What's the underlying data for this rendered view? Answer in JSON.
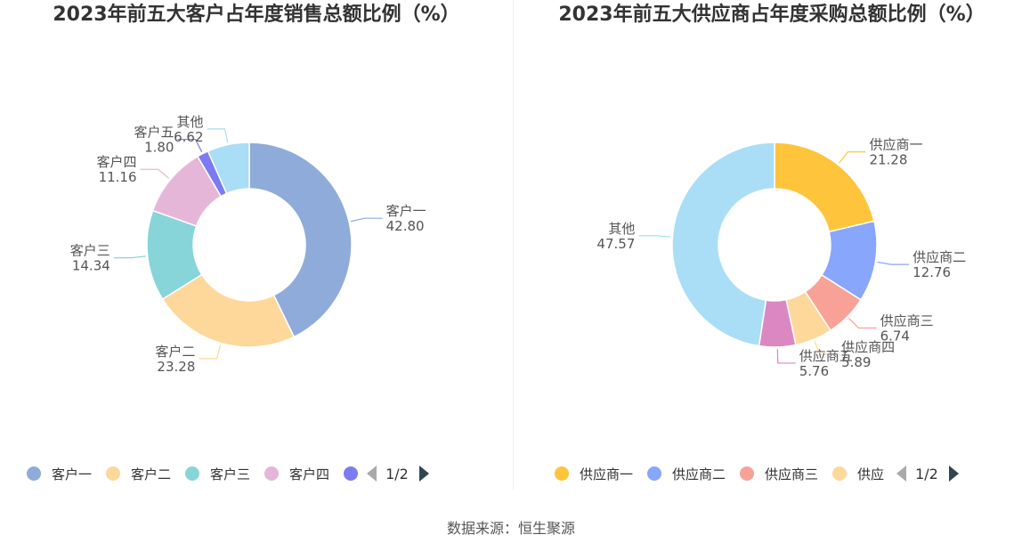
{
  "chart_data": [
    {
      "type": "pie",
      "title": "2023年前五大客户占年度销售总额比例（%）",
      "categories": [
        "客户一",
        "客户二",
        "客户三",
        "客户四",
        "客户五",
        "其他"
      ],
      "values": [
        42.8,
        23.28,
        14.34,
        11.16,
        1.8,
        6.62
      ],
      "value_labels": [
        "42.80",
        "23.28",
        "14.34",
        "11.16",
        "1.80",
        "6.62"
      ],
      "colors": [
        "#8fabd9",
        "#fdd89a",
        "#87d5d8",
        "#e6b6d8",
        "#7b7cf2",
        "#a9def6"
      ],
      "legend": {
        "visible_items": [
          "客户一",
          "客户二",
          "客户三",
          "客户四"
        ],
        "cut_item_color": "#7b7cf2",
        "placement": "bottom",
        "page": "1/2"
      }
    },
    {
      "type": "pie",
      "title": "2023年前五大供应商占年度采购总额比例（%）",
      "categories": [
        "供应商一",
        "供应商二",
        "供应商三",
        "供应商四",
        "供应商五",
        "其他"
      ],
      "values": [
        21.28,
        12.76,
        6.74,
        5.89,
        5.76,
        47.57
      ],
      "value_labels": [
        "21.28",
        "12.76",
        "6.74",
        "5.89",
        "5.76",
        "47.57"
      ],
      "colors": [
        "#fec53c",
        "#87a6fc",
        "#f8a297",
        "#fdd89a",
        "#db88c2",
        "#a9def6"
      ],
      "legend": {
        "visible_items": [
          "供应商一",
          "供应商二",
          "供应商三",
          "供应"
        ],
        "placement": "bottom",
        "page": "1/2"
      }
    }
  ],
  "source": "数据来源：恒生聚源"
}
